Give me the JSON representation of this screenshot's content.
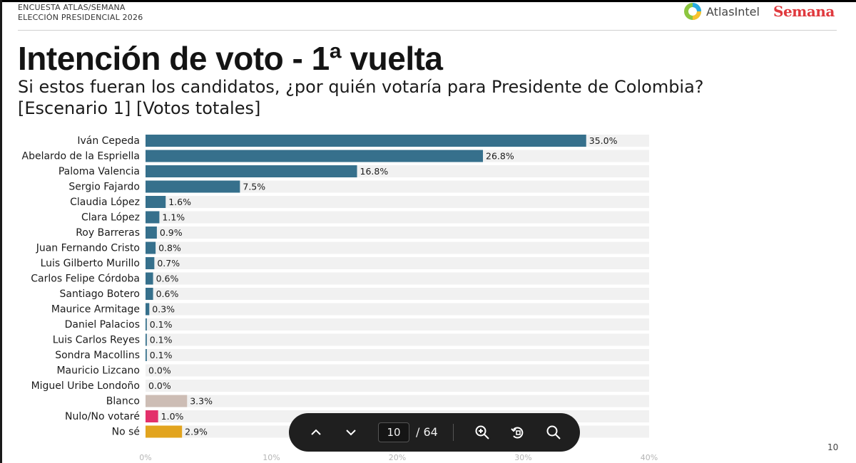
{
  "header": {
    "survey_line1": "ENCUESTA ATLAS/SEMANA",
    "survey_line2": "ELECCIÓN PRESIDENCIAL 2026",
    "atlas_brand": "AtlasIntel",
    "semana_brand": "Semana"
  },
  "slide": {
    "title": "Intención de voto - 1ª vuelta",
    "subtitle_line1": "Si estos fueran los candidatos, ¿por quién votaría para Presidente de Colombia?",
    "subtitle_line2": "[Escenario 1] [Votos totales]",
    "page_number": "10"
  },
  "colors": {
    "candidate": "#36708c",
    "blanco": "#cdbdb5",
    "nulo": "#e3306b",
    "nose": "#e2a41e",
    "track": "#f1f1f1"
  },
  "chart_data": {
    "type": "bar",
    "orientation": "horizontal",
    "xlim": [
      0,
      40
    ],
    "xticks": [
      "0%",
      "10%",
      "20%",
      "30%",
      "40%"
    ],
    "categories": [
      "Iván Cepeda",
      "Abelardo de la Espriella",
      "Paloma Valencia",
      "Sergio Fajardo",
      "Claudia López",
      "Clara López",
      "Roy Barreras",
      "Juan Fernando Cristo",
      "Luis Gilberto Murillo",
      "Carlos Felipe Córdoba",
      "Santiago Botero",
      "Maurice Armitage",
      "Daniel Palacios",
      "Luis Carlos Reyes",
      "Sondra Macollins",
      "Mauricio Lizcano",
      "Miguel Uribe Londoño",
      "Blanco",
      "Nulo/No votaré",
      "No sé"
    ],
    "values": [
      35.0,
      26.8,
      16.8,
      7.5,
      1.6,
      1.1,
      0.9,
      0.8,
      0.7,
      0.6,
      0.6,
      0.3,
      0.1,
      0.1,
      0.1,
      0.0,
      0.0,
      3.3,
      1.0,
      2.9
    ],
    "labels": [
      "35.0%",
      "26.8%",
      "16.8%",
      "7.5%",
      "1.6%",
      "1.1%",
      "0.9%",
      "0.8%",
      "0.7%",
      "0.6%",
      "0.6%",
      "0.3%",
      "0.1%",
      "0.1%",
      "0.1%",
      "0.0%",
      "0.0%",
      "3.3%",
      "1.0%",
      "2.9%"
    ],
    "color_keys": [
      "candidate",
      "candidate",
      "candidate",
      "candidate",
      "candidate",
      "candidate",
      "candidate",
      "candidate",
      "candidate",
      "candidate",
      "candidate",
      "candidate",
      "candidate",
      "candidate",
      "candidate",
      "candidate",
      "candidate",
      "blanco",
      "nulo",
      "nose"
    ]
  },
  "viewer": {
    "current_page": "10",
    "total_pages": "/ 64"
  }
}
